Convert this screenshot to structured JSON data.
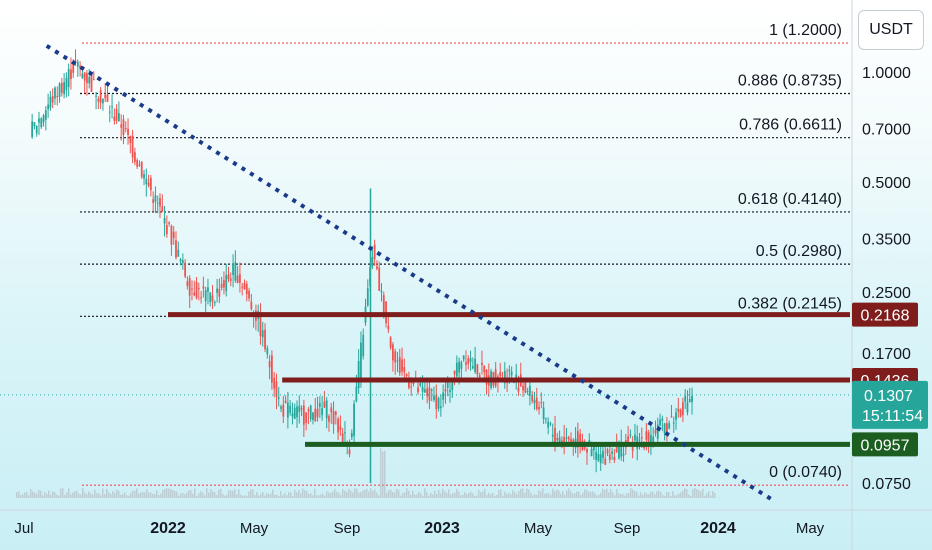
{
  "chart_data": {
    "type": "candlestick",
    "quote_currency": "USDT",
    "y_scale": "log",
    "y_ticks": [
      "1.0000",
      "0.7000",
      "0.5000",
      "0.3500",
      "0.2500",
      "0.1700",
      "0.0750"
    ],
    "x_ticks": [
      {
        "label": "Jul",
        "bold": false
      },
      {
        "label": "2022",
        "bold": true
      },
      {
        "label": "May",
        "bold": false
      },
      {
        "label": "Sep",
        "bold": false
      },
      {
        "label": "2023",
        "bold": true
      },
      {
        "label": "May",
        "bold": false
      },
      {
        "label": "Sep",
        "bold": false
      },
      {
        "label": "2024",
        "bold": true
      },
      {
        "label": "May",
        "bold": false
      }
    ],
    "fib_levels": [
      {
        "label": "1 (1.2000)",
        "value": 1.2,
        "color": "#ef5350"
      },
      {
        "label": "0.886 (0.8735)",
        "value": 0.8735,
        "color": "#131722"
      },
      {
        "label": "0.786 (0.6611)",
        "value": 0.6611,
        "color": "#131722"
      },
      {
        "label": "0.618 (0.4140)",
        "value": 0.414,
        "color": "#131722"
      },
      {
        "label": "0.5 (0.2980)",
        "value": 0.298,
        "color": "#131722"
      },
      {
        "label": "0.382 (0.2145)",
        "value": 0.2145,
        "color": "#131722"
      },
      {
        "label": "0 (0.0740)",
        "value": 0.074,
        "color": "#ef5350"
      }
    ],
    "horizontal_levels": [
      {
        "label": "0.2168",
        "value": 0.2168,
        "color": "#7f1d1d",
        "start": "2022-01"
      },
      {
        "label": "0.1436",
        "value": 0.1436,
        "color": "#7f1d1d",
        "start": "2022-06"
      },
      {
        "label": "0.0957",
        "value": 0.0957,
        "color": "#1b5e20",
        "start": "2022-07"
      }
    ],
    "trendline": {
      "from": {
        "date": "2021-09",
        "value": 1.15
      },
      "to": {
        "date": "2024-03",
        "value": 0.068
      },
      "style": "dotted",
      "color": "#1a3a8a"
    },
    "last_price": {
      "label": "0.1307",
      "value": 0.1307,
      "countdown": "15:11:54",
      "color": "#26a69a"
    },
    "price_series": [
      {
        "date": "2021-07",
        "value": 0.68
      },
      {
        "date": "2021-08",
        "value": 0.85
      },
      {
        "date": "2021-09",
        "value": 1.05
      },
      {
        "date": "2021-10",
        "value": 0.88
      },
      {
        "date": "2021-11",
        "value": 0.72
      },
      {
        "date": "2021-12",
        "value": 0.52
      },
      {
        "date": "2022-01",
        "value": 0.38
      },
      {
        "date": "2022-02",
        "value": 0.26
      },
      {
        "date": "2022-03",
        "value": 0.24
      },
      {
        "date": "2022-04",
        "value": 0.29
      },
      {
        "date": "2022-05",
        "value": 0.21
      },
      {
        "date": "2022-06",
        "value": 0.12
      },
      {
        "date": "2022-07",
        "value": 0.115
      },
      {
        "date": "2022-08",
        "value": 0.12
      },
      {
        "date": "2022-09",
        "value": 0.095
      },
      {
        "date": "2022-10",
        "value": 0.32
      },
      {
        "date": "2022-11",
        "value": 0.16
      },
      {
        "date": "2022-12",
        "value": 0.135
      },
      {
        "date": "2023-01",
        "value": 0.125
      },
      {
        "date": "2023-02",
        "value": 0.17
      },
      {
        "date": "2023-03",
        "value": 0.145
      },
      {
        "date": "2023-04",
        "value": 0.15
      },
      {
        "date": "2023-05",
        "value": 0.13
      },
      {
        "date": "2023-06",
        "value": 0.1
      },
      {
        "date": "2023-07",
        "value": 0.098
      },
      {
        "date": "2023-08",
        "value": 0.088
      },
      {
        "date": "2023-09",
        "value": 0.095
      },
      {
        "date": "2023-10",
        "value": 0.1
      },
      {
        "date": "2023-11",
        "value": 0.11
      },
      {
        "date": "2023-12",
        "value": 0.1307
      }
    ]
  }
}
